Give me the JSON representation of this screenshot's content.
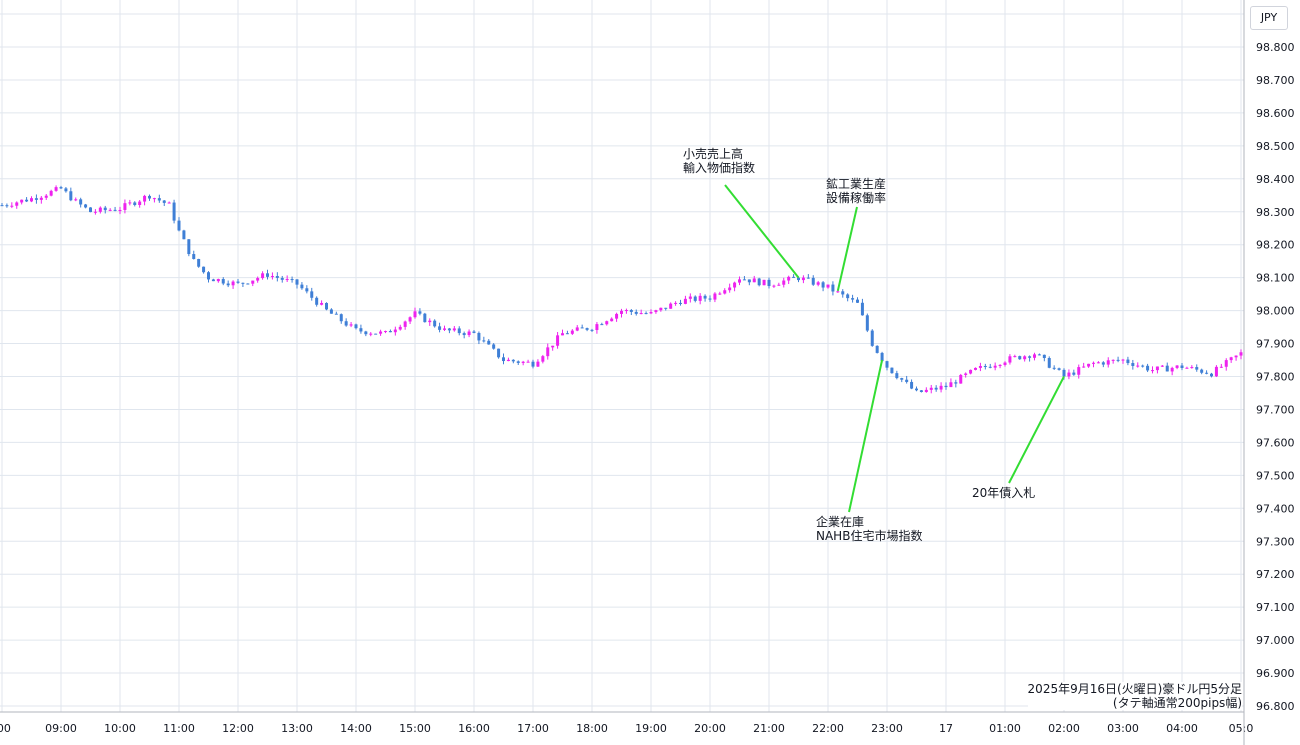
{
  "chart_data": {
    "type": "candlestick",
    "currency": "JPY",
    "ylim": [
      96.75,
      98.88
    ],
    "y_ticks": [
      "98.800",
      "98.700",
      "98.600",
      "98.500",
      "98.400",
      "98.300",
      "98.200",
      "98.100",
      "98.000",
      "97.900",
      "97.800",
      "97.700",
      "97.600",
      "97.500",
      "97.400",
      "97.300",
      "97.200",
      "97.100",
      "97.000",
      "96.900",
      "96.800"
    ],
    "x_ticks": [
      ":00",
      "09:00",
      "10:00",
      "11:00",
      "12:00",
      "13:00",
      "14:00",
      "15:00",
      "16:00",
      "17:00",
      "18:00",
      "19:00",
      "20:00",
      "21:00",
      "22:00",
      "23:00",
      "17",
      "01:00",
      "02:00",
      "03:00",
      "04:00",
      "05:0"
    ],
    "grid": true,
    "series_close_points": [
      [
        "08:00",
        98.32
      ],
      [
        "08:30",
        98.34
      ],
      [
        "09:00",
        98.37
      ],
      [
        "09:15",
        98.33
      ],
      [
        "09:30",
        98.3
      ],
      [
        "10:00",
        98.31
      ],
      [
        "10:30",
        98.35
      ],
      [
        "10:50",
        98.32
      ],
      [
        "11:00",
        98.24
      ],
      [
        "11:15",
        98.15
      ],
      [
        "11:30",
        98.1
      ],
      [
        "12:00",
        98.08
      ],
      [
        "12:30",
        98.11
      ],
      [
        "13:00",
        98.08
      ],
      [
        "13:30",
        98.0
      ],
      [
        "14:00",
        97.94
      ],
      [
        "14:30",
        97.93
      ],
      [
        "15:00",
        97.99
      ],
      [
        "15:30",
        97.94
      ],
      [
        "16:00",
        97.93
      ],
      [
        "16:30",
        97.85
      ],
      [
        "17:00",
        97.84
      ],
      [
        "17:30",
        97.93
      ],
      [
        "18:00",
        97.95
      ],
      [
        "18:30",
        98.0
      ],
      [
        "19:00",
        97.99
      ],
      [
        "19:30",
        98.03
      ],
      [
        "20:00",
        98.04
      ],
      [
        "20:30",
        98.1
      ],
      [
        "21:00",
        98.08
      ],
      [
        "21:30",
        98.1
      ],
      [
        "22:00",
        98.07
      ],
      [
        "22:30",
        98.02
      ],
      [
        "22:45",
        97.9
      ],
      [
        "23:00",
        97.83
      ],
      [
        "23:30",
        97.75
      ],
      [
        "00:00",
        97.77
      ],
      [
        "00:30",
        97.82
      ],
      [
        "01:00",
        97.85
      ],
      [
        "01:30",
        97.87
      ],
      [
        "02:00",
        97.8
      ],
      [
        "02:30",
        97.84
      ],
      [
        "03:00",
        97.85
      ],
      [
        "03:30",
        97.82
      ],
      [
        "04:00",
        97.83
      ],
      [
        "04:30",
        97.81
      ],
      [
        "05:00",
        97.87
      ]
    ],
    "annotations": [
      {
        "text": [
          "小売売上高",
          "輸入物価指数"
        ],
        "time": "21:30",
        "value": 98.1
      },
      {
        "text": [
          "鉱工業生産",
          "設備稼働率"
        ],
        "time": "22:10",
        "value": 98.06
      },
      {
        "text": [
          "企業在庫",
          "NAHB住宅市場指数"
        ],
        "time": "22:55",
        "value": 97.85
      },
      {
        "text": [
          "20年債入札"
        ],
        "time": "02:00",
        "value": 97.8
      }
    ],
    "caption": [
      "2025年9月16日(火曜日)豪ドル円5分足",
      "(タテ軸通常200pips幅)"
    ]
  },
  "colors": {
    "up": "#ee22ee",
    "down": "#3f7fd6",
    "grid": "#e0e6ee",
    "annotation_line": "#33dd33",
    "text": "#131722"
  }
}
